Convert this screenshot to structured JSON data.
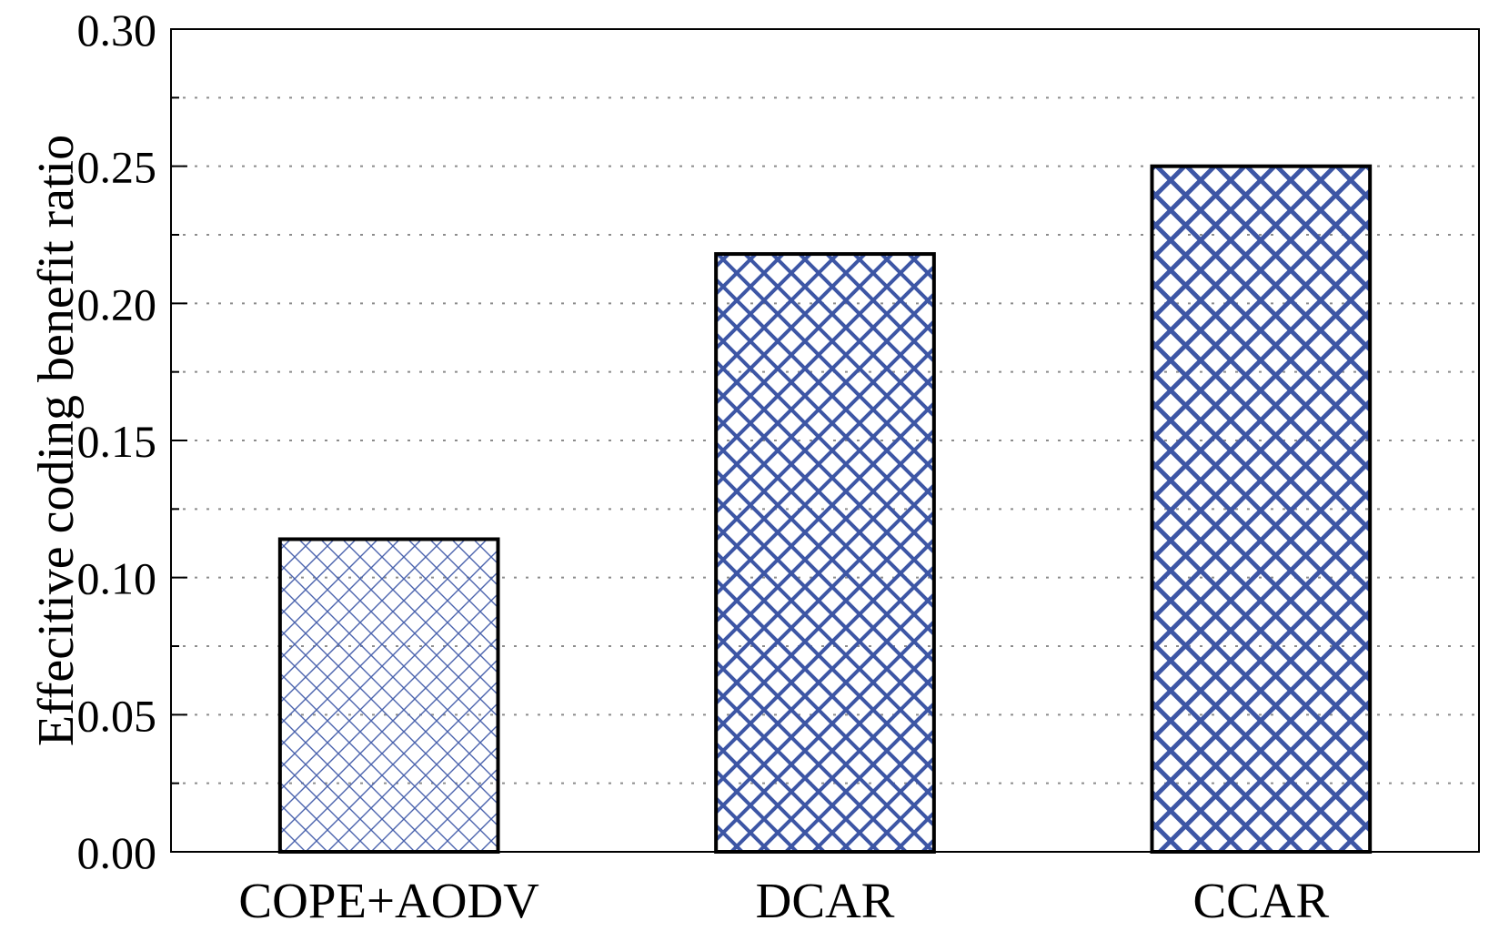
{
  "chart_data": {
    "type": "bar",
    "title": "",
    "xlabel": "",
    "ylabel": "Effecitive coding benefit ratio",
    "categories": [
      "COPE+AODV",
      "DCAR",
      "CCAR"
    ],
    "values": [
      0.114,
      0.218,
      0.25
    ],
    "ylim": [
      0,
      0.3
    ],
    "ytick_major_step": 0.05,
    "ytick_minor_step": 0.025,
    "ytick_labels": [
      "0.00",
      "0.05",
      "0.10",
      "0.15",
      "0.20",
      "0.25",
      "0.30"
    ],
    "grid": "horizontal dotted lines every 0.025",
    "legend": "none",
    "colors": {
      "background": "#ffffff",
      "axis": "#000000",
      "bar_border": "#000000",
      "gridline": "#8c8c8c",
      "hatch_fine": "#4a63ad",
      "hatch_bold": "#3d56a5"
    },
    "bar_styles": [
      {
        "hatch": "fine-crosshatch",
        "tile": 24,
        "stroke_width": 1.4
      },
      {
        "hatch": "medium-crosshatch",
        "tile": 30,
        "stroke_width": 4
      },
      {
        "hatch": "coarse-crosshatch",
        "tile": 33,
        "stroke_width": 5
      }
    ]
  }
}
